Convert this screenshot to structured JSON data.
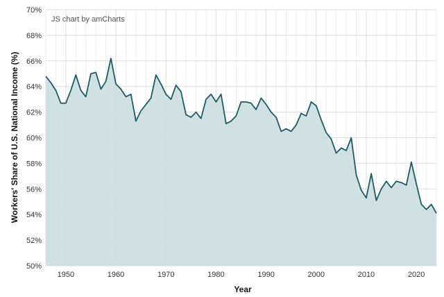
{
  "credit": "JS chart by amCharts",
  "chart_data": {
    "type": "area",
    "xlabel": "Year",
    "ylabel": "Workers' Share of U.S. National Income (%)",
    "xlim": [
      1946,
      2024
    ],
    "ylim": [
      50,
      70
    ],
    "x_ticks": [
      "1950",
      "1960",
      "1970",
      "1980",
      "1990",
      "2000",
      "2010",
      "2020"
    ],
    "y_ticks": [
      "50%",
      "52%",
      "54%",
      "56%",
      "58%",
      "60%",
      "62%",
      "64%",
      "66%",
      "68%",
      "70%"
    ],
    "grid": true,
    "line_color": "#1b5a66",
    "fill_color": "#cfdfe2",
    "x": [
      1946,
      1947,
      1948,
      1949,
      1950,
      1951,
      1952,
      1953,
      1954,
      1955,
      1956,
      1957,
      1958,
      1959,
      1960,
      1961,
      1962,
      1963,
      1964,
      1965,
      1966,
      1967,
      1968,
      1969,
      1970,
      1971,
      1972,
      1973,
      1974,
      1975,
      1976,
      1977,
      1978,
      1979,
      1980,
      1981,
      1982,
      1983,
      1984,
      1985,
      1986,
      1987,
      1988,
      1989,
      1990,
      1991,
      1992,
      1993,
      1994,
      1995,
      1996,
      1997,
      1998,
      1999,
      2000,
      2001,
      2002,
      2003,
      2004,
      2005,
      2006,
      2007,
      2008,
      2009,
      2010,
      2011,
      2012,
      2013,
      2014,
      2015,
      2016,
      2017,
      2018,
      2019,
      2020,
      2021,
      2022,
      2023,
      2024
    ],
    "values": [
      64.8,
      64.3,
      63.7,
      62.7,
      62.7,
      63.7,
      64.9,
      63.7,
      63.2,
      65.0,
      65.1,
      63.8,
      64.4,
      66.2,
      64.2,
      63.8,
      63.2,
      63.4,
      61.3,
      62.1,
      62.6,
      63.1,
      64.9,
      64.2,
      63.4,
      63.0,
      64.1,
      63.6,
      61.8,
      61.6,
      62.0,
      61.5,
      63.0,
      63.4,
      62.8,
      63.4,
      61.1,
      61.3,
      61.7,
      62.8,
      62.8,
      62.7,
      62.2,
      63.1,
      62.6,
      62.0,
      61.6,
      60.5,
      60.7,
      60.5,
      61.0,
      61.9,
      61.7,
      62.8,
      62.5,
      61.4,
      60.4,
      59.9,
      58.8,
      59.2,
      59.0,
      60.0,
      57.1,
      55.9,
      55.3,
      57.2,
      55.1,
      56.0,
      56.6,
      56.1,
      56.6,
      56.5,
      56.3,
      58.1,
      56.4,
      54.8,
      54.4,
      54.8,
      54.1
    ]
  }
}
